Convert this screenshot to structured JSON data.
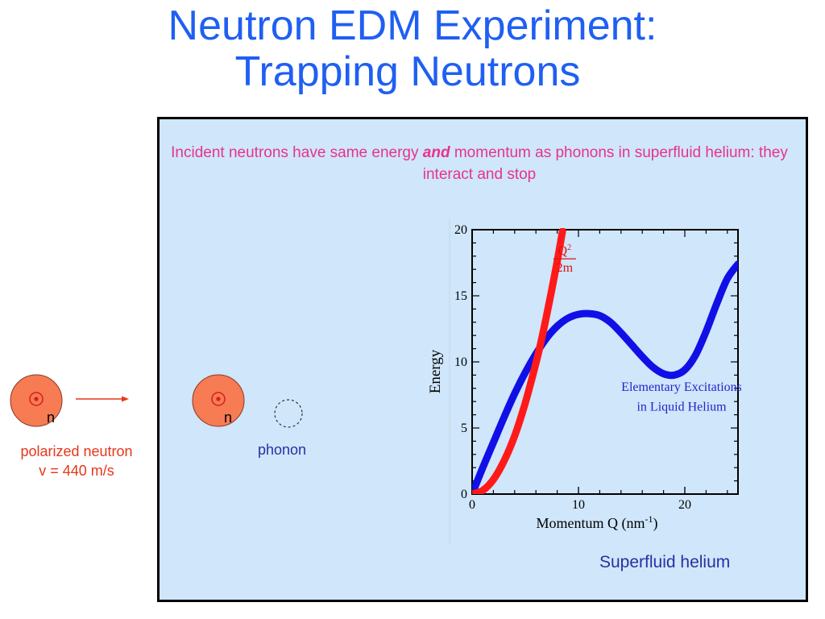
{
  "slide": {
    "title_line1": "Neutron EDM Experiment:",
    "title_line2": "Trapping Neutrons"
  },
  "panel": {
    "caption_part1": "Incident neutrons have same energy ",
    "caption_emphasis": "and",
    "caption_part2": " momentum as phonons in superfluid helium: they interact and stop",
    "medium_label": "Superfluid helium"
  },
  "incoming": {
    "symbol": "n",
    "label_line1": "polarized neutron",
    "label_line2": "v = 440 m/s"
  },
  "stopped": {
    "symbol": "n",
    "phonon_label": "phonon"
  },
  "colors": {
    "title": "#1f5ff2",
    "caption": "#e8338a",
    "neutron_fill": "#f77b53",
    "free_particle_curve": "#ff1a1a",
    "excitation_curve": "#1010e6",
    "panel_bg": "#cfe6fb"
  },
  "chart_data": {
    "type": "line",
    "xlabel_main": "Momentum Q (nm",
    "xlabel_sup": "-1",
    "xlabel_close": ")",
    "ylabel": "Energy",
    "xlim": [
      0,
      25
    ],
    "ylim": [
      0,
      20
    ],
    "x_ticks": [
      "0",
      "10",
      "20"
    ],
    "y_ticks": [
      "0",
      "5",
      "10",
      "15",
      "20"
    ],
    "curve_label_num": "Q",
    "curve_label_sup": "2",
    "curve_label_den": "2m",
    "annotation_line1": "Elementary Excitations",
    "annotation_line2": "in Liquid Helium",
    "series": [
      {
        "key": "free",
        "x": [
          0,
          1,
          2,
          3,
          4,
          5,
          6,
          6.5,
          7,
          7.5,
          8,
          8.5
        ],
        "y": [
          0,
          0.28,
          1.1,
          2.5,
          4.4,
          6.9,
          9.9,
          11.6,
          13.5,
          15.5,
          17.6,
          19.9
        ]
      },
      {
        "key": "excitation",
        "x": [
          0,
          1,
          2,
          3,
          4,
          5,
          6,
          7,
          8,
          9,
          10,
          11,
          12,
          13,
          14,
          15,
          16,
          17,
          18,
          19,
          20,
          21,
          22,
          23,
          24,
          25
        ],
        "y": [
          0,
          2.0,
          3.9,
          5.8,
          7.6,
          9.2,
          10.6,
          11.8,
          12.7,
          13.3,
          13.6,
          13.65,
          13.5,
          13.0,
          12.2,
          11.3,
          10.4,
          9.6,
          9.1,
          9.0,
          9.4,
          10.5,
          12.3,
          14.4,
          16.3,
          17.4
        ]
      }
    ]
  }
}
